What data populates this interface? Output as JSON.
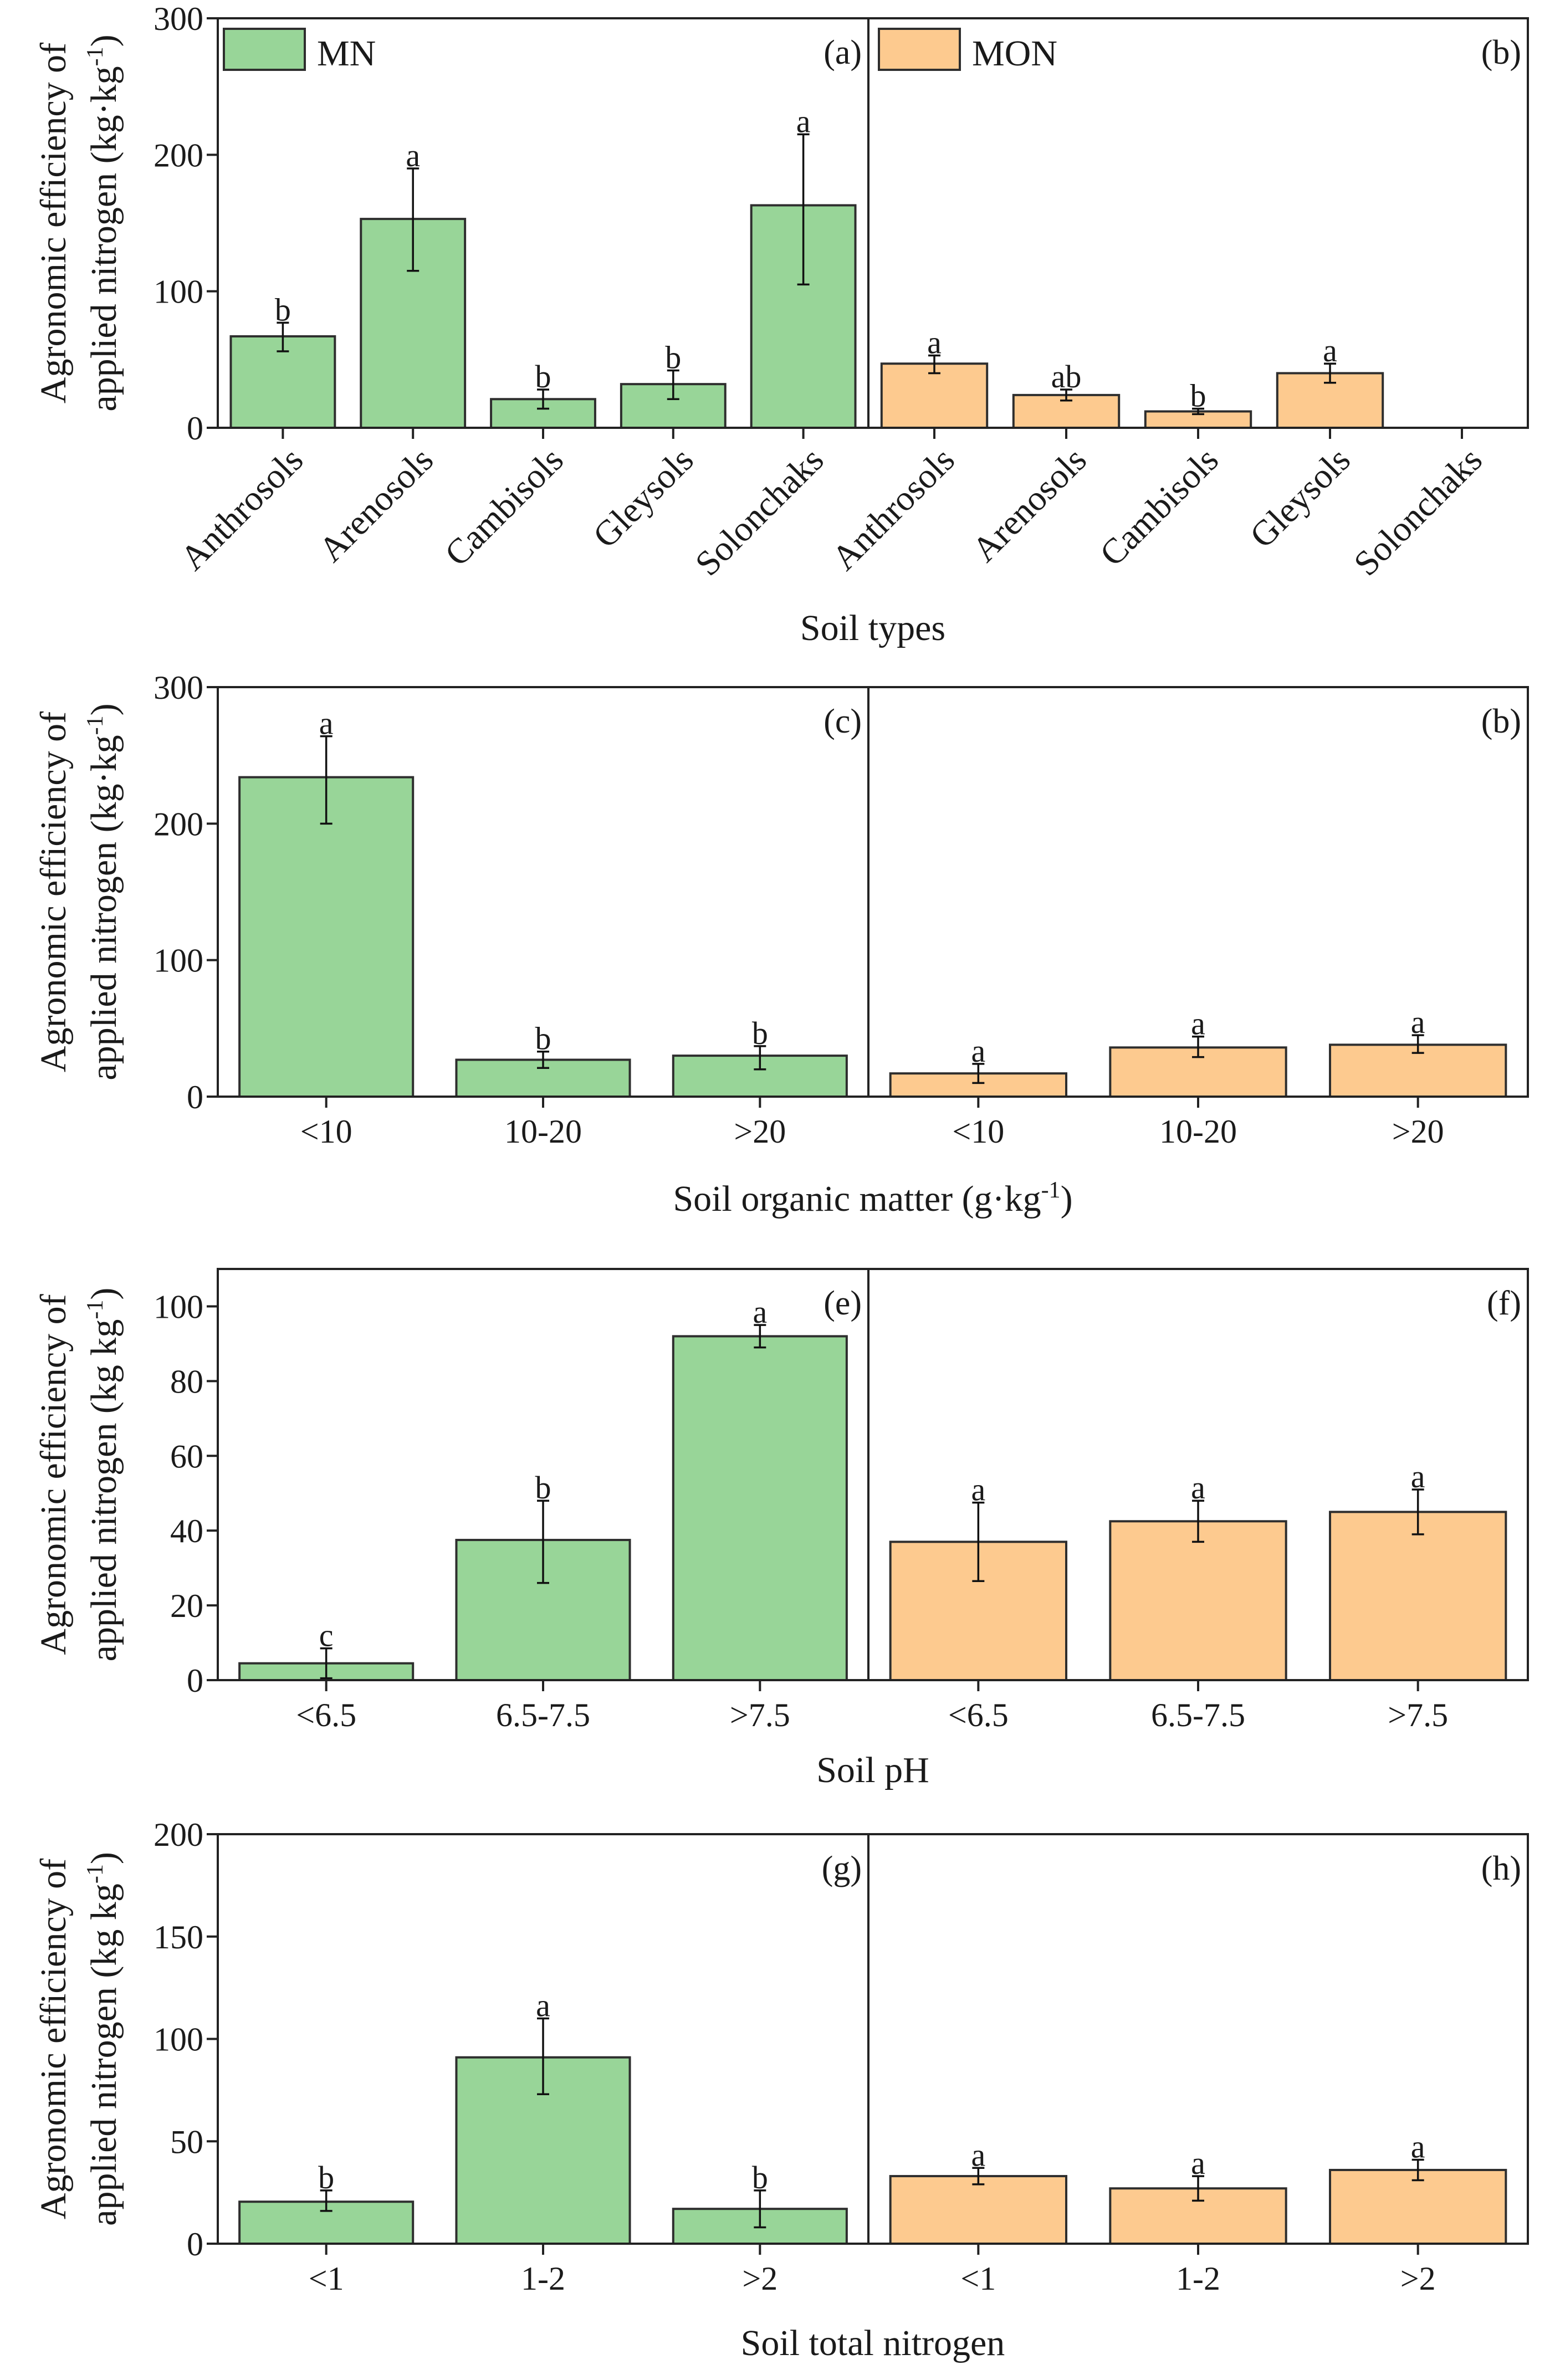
{
  "series_colors": [
    "#98d598",
    "#fdca8f"
  ],
  "chart_data": [
    {
      "type": "bar",
      "xlabel": "Soil types",
      "ylabel_line1": "Agronomic efficiency of",
      "ylabel_line2": "applied nitrogen (kg·kg",
      "ylabel_sup": "-1",
      "ylabel_post": ")",
      "ylim": [
        0,
        300
      ],
      "yticks": [
        0,
        100,
        200,
        300
      ],
      "legend": [
        "MN",
        "MON"
      ],
      "panels": [
        {
          "label": "(a)",
          "series": 0,
          "categories": [
            "Anthrosols",
            "Arenosols",
            "Cambisols",
            "Gleysols",
            "Solonchaks"
          ],
          "values": [
            67,
            153,
            21,
            32,
            163
          ],
          "err_low": [
            56,
            115,
            14,
            21,
            105
          ],
          "err_high": [
            77,
            190,
            28,
            42,
            215
          ],
          "letters": [
            "b",
            "a",
            "b",
            "b",
            "a"
          ]
        },
        {
          "label": "(b)",
          "series": 1,
          "categories": [
            "Anthrosols",
            "Arenosols",
            "Cambisols",
            "Gleysols",
            "Solonchaks"
          ],
          "values": [
            47,
            24,
            12,
            40,
            null
          ],
          "err_low": [
            40,
            20,
            10,
            33,
            null
          ],
          "err_high": [
            53,
            28,
            14,
            47,
            null
          ],
          "letters": [
            "a",
            "ab",
            "b",
            "a",
            null
          ]
        }
      ]
    },
    {
      "type": "bar",
      "xlabel": "Soil organic matter (g·kg",
      "xlabel_sup": "-1",
      "xlabel_post": ")",
      "ylabel_line1": "Agronomic efficiency of",
      "ylabel_line2": "applied nitrogen (kg·kg",
      "ylabel_sup": "-1",
      "ylabel_post": ")",
      "ylim": [
        0,
        300
      ],
      "yticks": [
        0,
        100,
        200,
        300
      ],
      "panels": [
        {
          "label": "(c)",
          "series": 0,
          "categories": [
            "<10",
            "10-20",
            ">20"
          ],
          "values": [
            234,
            27,
            30
          ],
          "err_low": [
            200,
            21,
            20
          ],
          "err_high": [
            264,
            33,
            37
          ],
          "letters": [
            "a",
            "b",
            "b"
          ]
        },
        {
          "label": "(b)",
          "series": 1,
          "categories": [
            "<10",
            "10-20",
            ">20"
          ],
          "values": [
            17,
            36,
            38
          ],
          "err_low": [
            10,
            29,
            32
          ],
          "err_high": [
            24,
            44,
            45
          ],
          "letters": [
            "a",
            "a",
            "a"
          ]
        }
      ]
    },
    {
      "type": "bar",
      "xlabel": "Soil pH",
      "ylabel_line1": "Agronomic efficiency of",
      "ylabel_line2": "applied nitrogen (kg kg",
      "ylabel_sup": "-1",
      "ylabel_post": ")",
      "ylim": [
        0,
        110
      ],
      "yticks": [
        0,
        20,
        40,
        60,
        80,
        100
      ],
      "panels": [
        {
          "label": "(e)",
          "series": 0,
          "categories": [
            "<6.5",
            "6.5-7.5",
            ">7.5"
          ],
          "values": [
            4.5,
            37.5,
            92
          ],
          "err_low": [
            0.5,
            26,
            89
          ],
          "err_high": [
            8.5,
            48,
            95
          ],
          "letters": [
            "c",
            "b",
            "a"
          ]
        },
        {
          "label": "(f)",
          "series": 1,
          "categories": [
            "<6.5",
            "6.5-7.5",
            ">7.5"
          ],
          "values": [
            37,
            42.5,
            45
          ],
          "err_low": [
            26.5,
            37,
            39
          ],
          "err_high": [
            47.5,
            48,
            51
          ],
          "letters": [
            "a",
            "a",
            "a"
          ]
        }
      ]
    },
    {
      "type": "bar",
      "xlabel": "Soil total nitrogen",
      "ylabel_line1": "Agronomic efficiency of",
      "ylabel_line2": "applied nitrogen (kg kg",
      "ylabel_sup": "-1",
      "ylabel_post": ")",
      "ylim": [
        0,
        200
      ],
      "yticks": [
        0,
        50,
        100,
        150,
        200
      ],
      "panels": [
        {
          "label": "(g)",
          "series": 0,
          "categories": [
            "<1",
            "1-2",
            ">2"
          ],
          "values": [
            20.5,
            91,
            17
          ],
          "err_low": [
            16,
            73,
            8
          ],
          "err_high": [
            26,
            110,
            26
          ],
          "letters": [
            "b",
            "a",
            "b"
          ]
        },
        {
          "label": "(h)",
          "series": 1,
          "categories": [
            "<1",
            "1-2",
            ">2"
          ],
          "values": [
            33,
            27,
            36
          ],
          "err_low": [
            29,
            21,
            31
          ],
          "err_high": [
            37,
            33,
            41
          ],
          "letters": [
            "a",
            "a",
            "a"
          ]
        }
      ]
    }
  ]
}
